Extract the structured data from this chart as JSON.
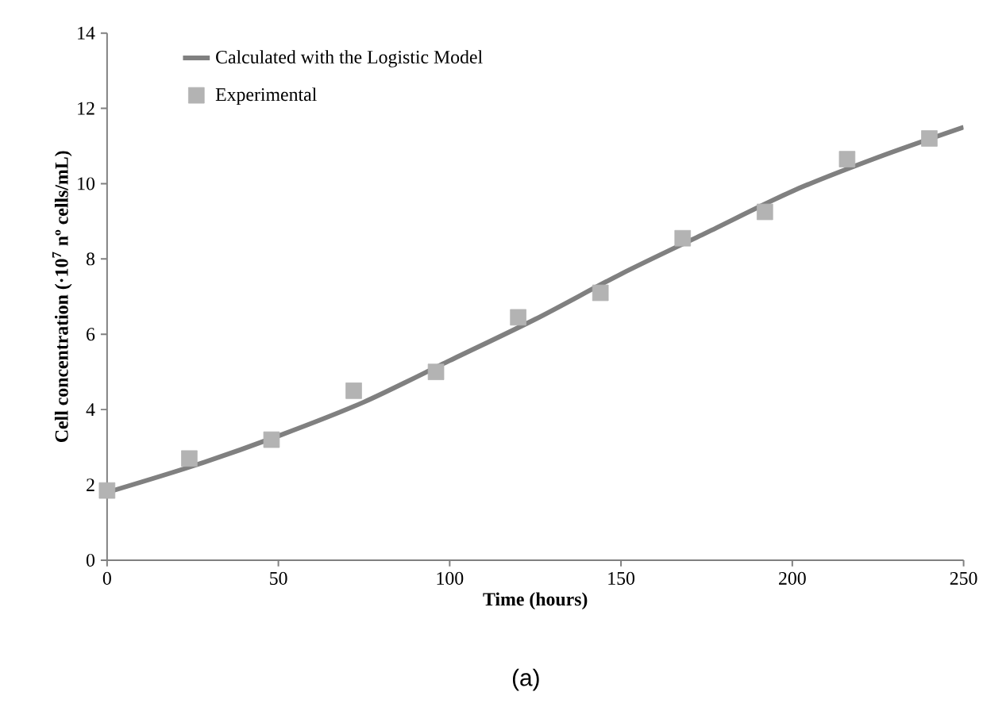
{
  "chart_data": {
    "type": "line",
    "xlabel": "Time (hours)",
    "ylabel": "Cell concentration (·10$^{7}$ nº cells/mL)",
    "series": [
      {
        "name": "Calculated with the Logistic Model",
        "color": "#808080",
        "marker": "none",
        "x": [
          0,
          25,
          50,
          75,
          100,
          125,
          150,
          175,
          200,
          225,
          250
        ],
        "values": [
          1.8,
          2.5,
          3.3,
          4.2,
          5.3,
          6.4,
          7.6,
          8.7,
          9.8,
          10.7,
          11.5
        ]
      },
      {
        "name": "Experimental",
        "type": "scatter",
        "color": "#b3b3b3",
        "marker": "square",
        "x": [
          0,
          24,
          48,
          72,
          96,
          120,
          144,
          168,
          192,
          216,
          240
        ],
        "values": [
          1.85,
          2.7,
          3.2,
          4.5,
          5.0,
          6.45,
          7.1,
          8.55,
          9.25,
          10.65,
          11.2
        ]
      }
    ],
    "xlim": [
      0,
      250
    ],
    "xticks": [
      0,
      50,
      100,
      150,
      200,
      250
    ],
    "ylim": [
      0,
      14
    ],
    "yticks": [
      0,
      2,
      4,
      6,
      8,
      10,
      12,
      14
    ],
    "legend": "top left",
    "annotations": [
      "(a)"
    ]
  }
}
